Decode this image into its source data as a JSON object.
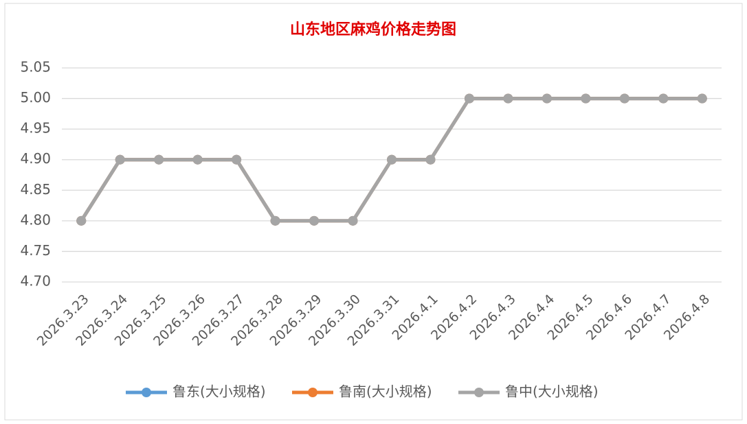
{
  "chart_data": {
    "type": "line",
    "title": "山东地区麻鸡价格走势图",
    "categories": [
      "2026.3.23",
      "2026.3.24",
      "2026.3.25",
      "2026.3.26",
      "2026.3.27",
      "2026.3.28",
      "2026.3.29",
      "2026.3.30",
      "2026.3.31",
      "2026.4.1",
      "2026.4.2",
      "2026.4.3",
      "2026.4.4",
      "2026.4.5",
      "2026.4.6",
      "2026.4.7",
      "2026.4.8"
    ],
    "series": [
      {
        "name": "鲁东(大小规格)",
        "color": "#5b9bd5",
        "values": [
          4.8,
          4.9,
          4.9,
          4.9,
          4.9,
          4.8,
          4.8,
          4.8,
          4.9,
          4.9,
          5.0,
          5.0,
          5.0,
          5.0,
          5.0,
          5.0,
          5.0
        ]
      },
      {
        "name": "鲁南(大小规格)",
        "color": "#ed7d31",
        "values": [
          4.8,
          4.9,
          4.9,
          4.9,
          4.9,
          4.8,
          4.8,
          4.8,
          4.9,
          4.9,
          5.0,
          5.0,
          5.0,
          5.0,
          5.0,
          5.0,
          5.0
        ]
      },
      {
        "name": "鲁中(大小规格)",
        "color": "#a5a5a5",
        "values": [
          4.8,
          4.9,
          4.9,
          4.9,
          4.9,
          4.8,
          4.8,
          4.8,
          4.9,
          4.9,
          5.0,
          5.0,
          5.0,
          5.0,
          5.0,
          5.0,
          5.0
        ]
      }
    ],
    "ylim": [
      4.7,
      5.05
    ],
    "yticks": [
      {
        "value": 4.7,
        "label": "4.70"
      },
      4.75,
      {
        "value": 4.8,
        "label": "4.80"
      },
      4.85,
      {
        "value": 4.9,
        "label": "4.90"
      },
      4.95,
      {
        "value": 5.0,
        "label": "5.00"
      },
      5.05
    ],
    "grid": true,
    "legend": "bottom"
  }
}
